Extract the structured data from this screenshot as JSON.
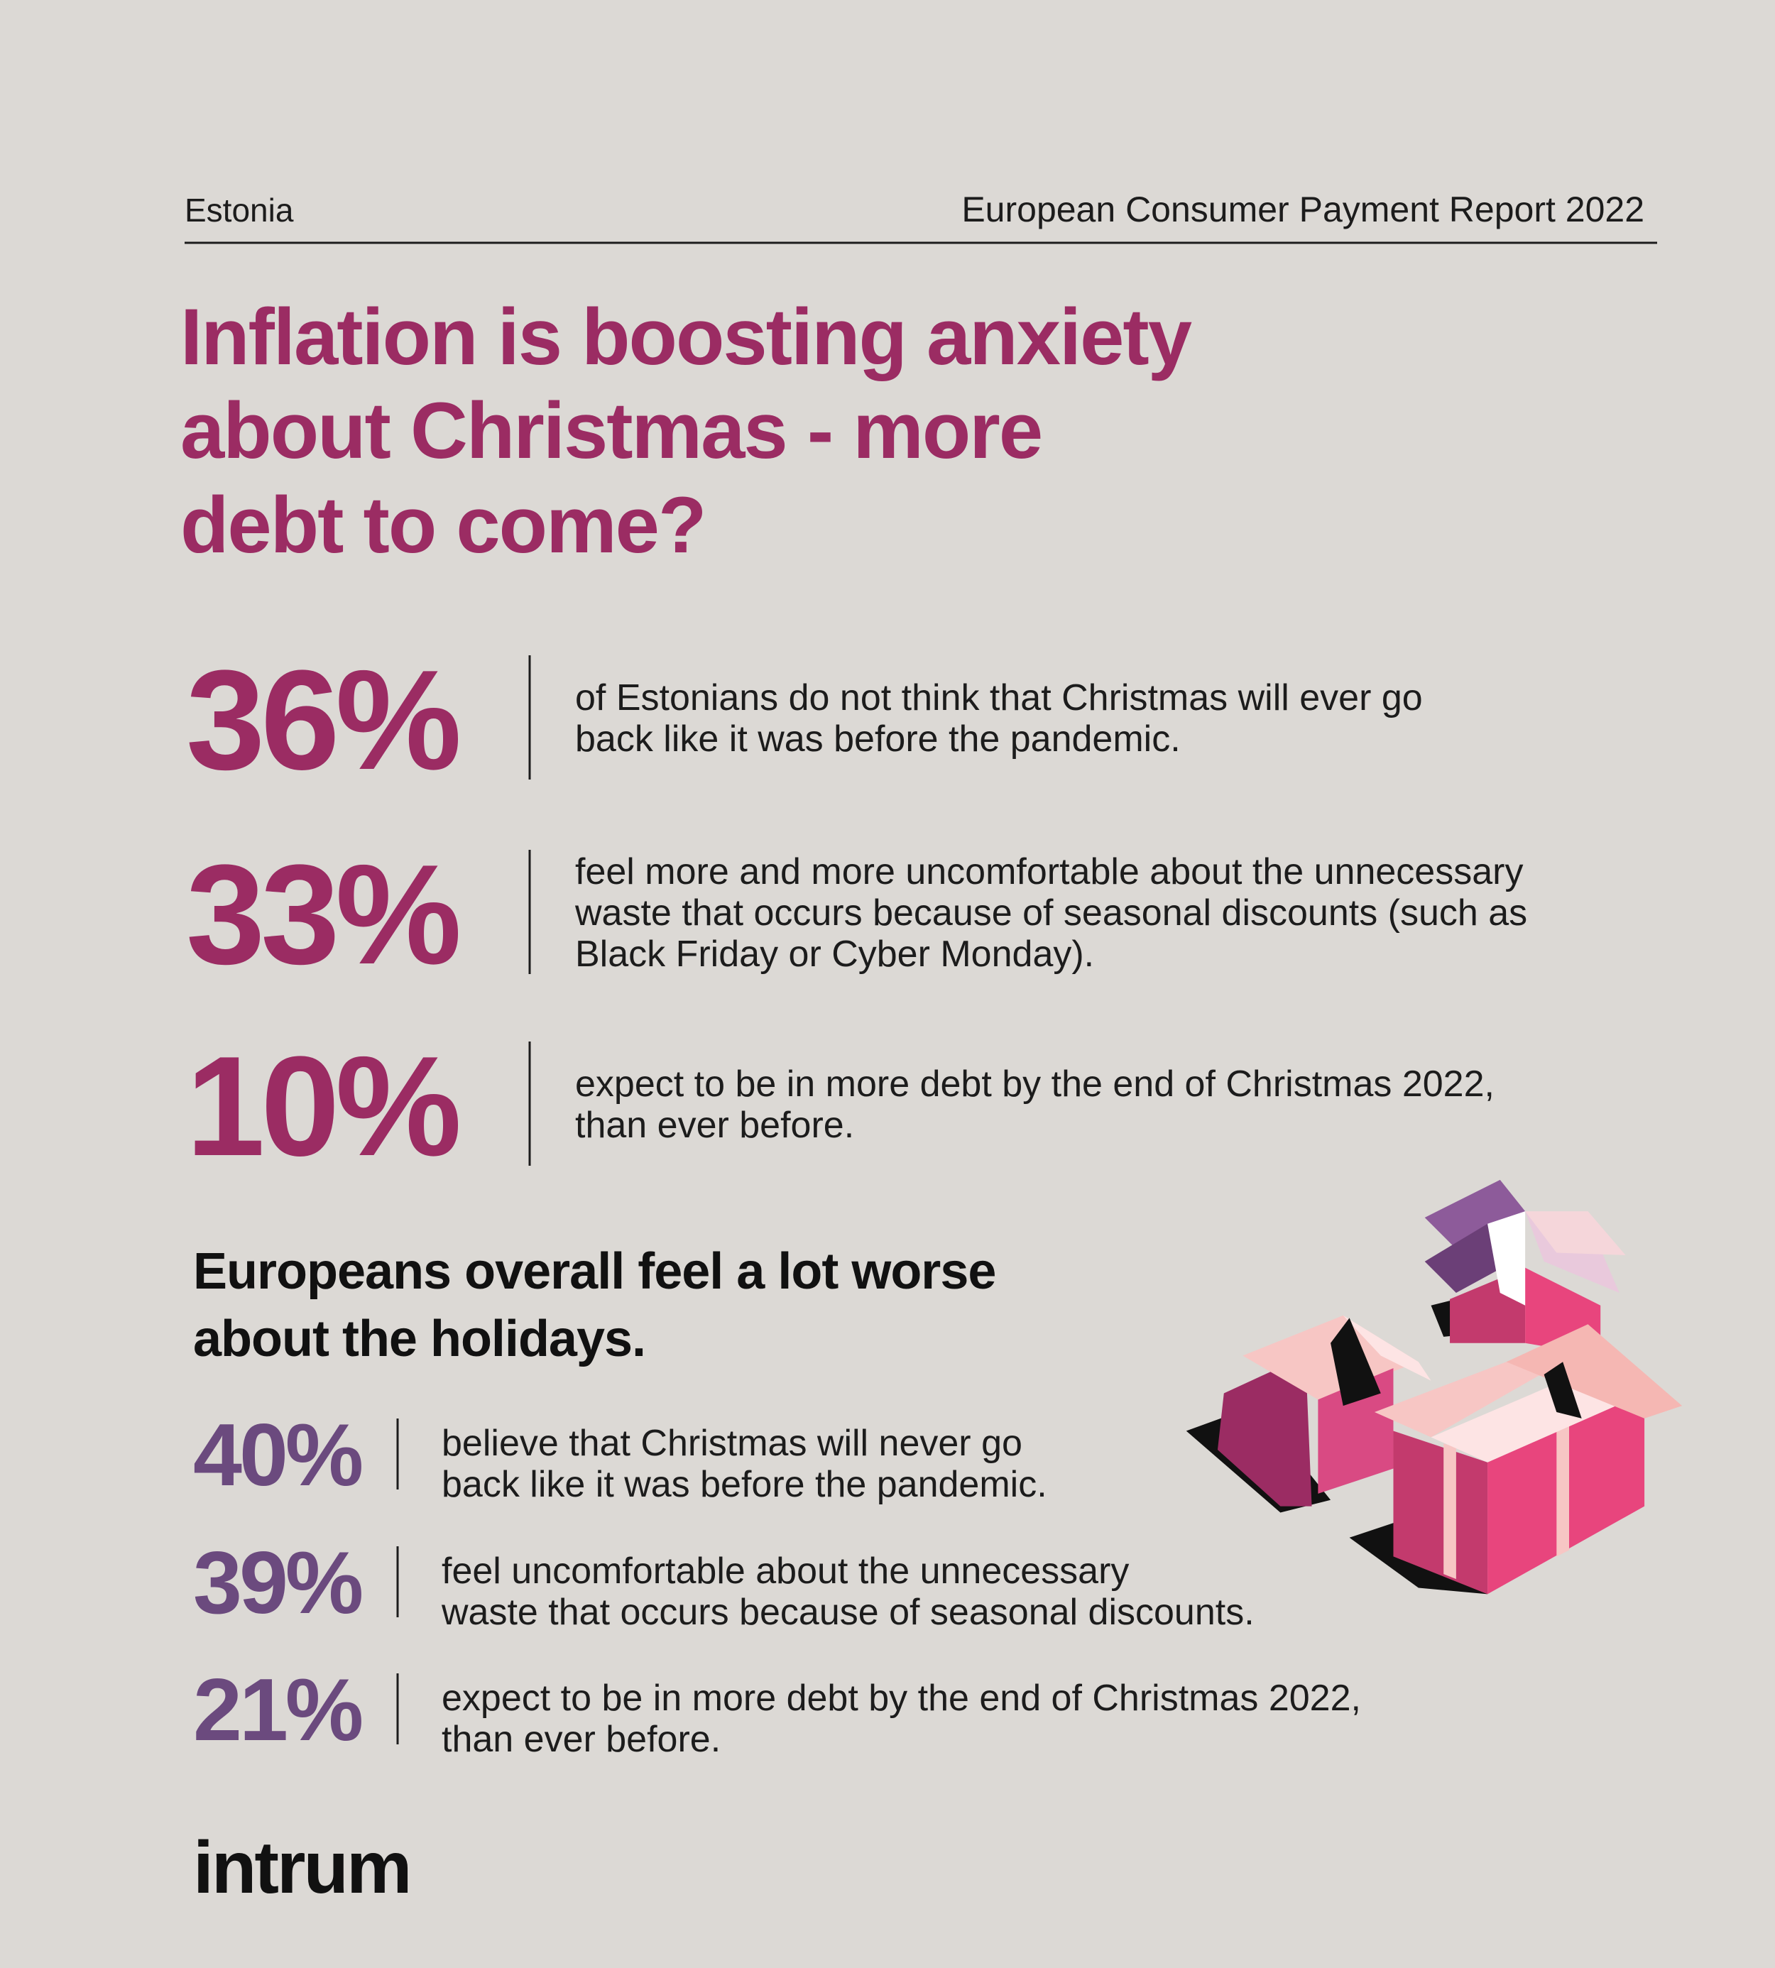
{
  "header": {
    "region": "Estonia",
    "report": "European Consumer Payment Report 2022"
  },
  "title": [
    "Inflation is boosting anxiety",
    "about Christmas - more",
    "debt to come?"
  ],
  "estonia_stats": [
    {
      "value": "36%",
      "text": [
        "of Estonians do not think that Christmas will ever go",
        "back like it was before the pandemic."
      ]
    },
    {
      "value": "33%",
      "text": [
        "feel more and more uncomfortable about the unnecessary",
        "waste that occurs because of seasonal discounts (such as",
        "Black Friday or Cyber Monday)."
      ]
    },
    {
      "value": "10%",
      "text": [
        "expect to be in more debt by the end of Christmas 2022,",
        "than ever before."
      ]
    }
  ],
  "europe_title": [
    "Europeans overall feel a lot worse",
    "about the holidays."
  ],
  "europe_stats": [
    {
      "value": "40%",
      "text": [
        "believe that Christmas will never go",
        "back like it was before the pandemic."
      ]
    },
    {
      "value": "39%",
      "text": [
        "feel uncomfortable about the unnecessary",
        "waste that occurs because of seasonal discounts."
      ]
    },
    {
      "value": "21%",
      "text": [
        "expect to be in more debt by the end of Christmas 2022,",
        "than ever before."
      ]
    }
  ],
  "logo": "intrum"
}
